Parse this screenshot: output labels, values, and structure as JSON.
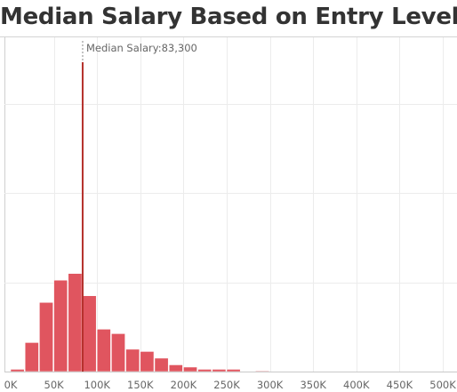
{
  "chart_data": {
    "type": "bar",
    "title": "Median Salary Based on Entry Level",
    "xlabel": "",
    "ylabel": "",
    "bin_width": 16666,
    "x_range": [
      0,
      515000
    ],
    "x_ticks": [
      0,
      50000,
      100000,
      150000,
      200000,
      250000,
      300000,
      350000,
      400000,
      450000,
      500000
    ],
    "x_tick_labels": [
      "0K",
      "50K",
      "100K",
      "150K",
      "200K",
      "250K",
      "300K",
      "350K",
      "400K",
      "450K",
      "500K"
    ],
    "bins": [
      {
        "x": 0,
        "value": 1
      },
      {
        "x": 16666,
        "value": 13
      },
      {
        "x": 33333,
        "value": 31
      },
      {
        "x": 50000,
        "value": 41
      },
      {
        "x": 66666,
        "value": 44
      },
      {
        "x": 83333,
        "value": 34
      },
      {
        "x": 100000,
        "value": 19
      },
      {
        "x": 116666,
        "value": 17
      },
      {
        "x": 133333,
        "value": 10
      },
      {
        "x": 150000,
        "value": 9
      },
      {
        "x": 166666,
        "value": 6
      },
      {
        "x": 183333,
        "value": 3
      },
      {
        "x": 200000,
        "value": 2
      },
      {
        "x": 216666,
        "value": 1
      },
      {
        "x": 233333,
        "value": 1
      },
      {
        "x": 250000,
        "value": 1
      },
      {
        "x": 283333,
        "value": 0.3
      }
    ],
    "y_range": [
      0,
      150
    ],
    "reference_line": {
      "label": "Median Salary:83,300",
      "x": 83300
    },
    "bar_color": "#e0555f",
    "reference_color": "#b5312c",
    "grid": true
  }
}
